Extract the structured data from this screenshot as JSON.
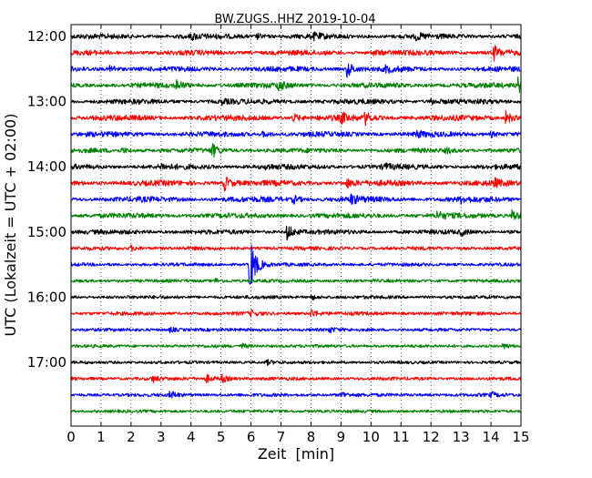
{
  "chart_data": {
    "type": "line",
    "title": "BW.ZUGS..HHZ 2019-10-04",
    "xlabel": "Zeit  [min]",
    "ylabel": "UTC (Lokalzeit = UTC + 02:00)",
    "xlim": [
      0,
      15
    ],
    "x_ticks": [
      "0",
      "1",
      "2",
      "3",
      "4",
      "5",
      "6",
      "7",
      "8",
      "9",
      "10",
      "11",
      "12",
      "13",
      "14",
      "15"
    ],
    "y_ticks": [
      "12:00",
      "13:00",
      "14:00",
      "15:00",
      "16:00",
      "17:00"
    ],
    "grid": "vertical dotted",
    "trace_colors": [
      "#000000",
      "#ff0000",
      "#0000ff",
      "#008000"
    ],
    "series": [
      {
        "start": "12:00",
        "noise": 0.3,
        "events": [
          [
            4.0,
            0.35
          ],
          [
            6.2,
            0.3
          ],
          [
            8.1,
            0.3
          ],
          [
            11.5,
            0.35
          ]
        ]
      },
      {
        "start": "12:15",
        "noise": 0.3,
        "events": [
          [
            10.1,
            0.35
          ],
          [
            14.1,
            0.8
          ]
        ]
      },
      {
        "start": "12:30",
        "noise": 0.3,
        "events": [
          [
            1.3,
            0.5
          ],
          [
            9.2,
            1.0
          ],
          [
            10.5,
            0.35
          ]
        ]
      },
      {
        "start": "12:45",
        "noise": 0.3,
        "events": [
          [
            3.5,
            0.6
          ],
          [
            6.9,
            0.6
          ],
          [
            14.9,
            0.9
          ]
        ]
      },
      {
        "start": "13:00",
        "noise": 0.3,
        "events": [
          [
            5.0,
            0.3
          ],
          [
            12.0,
            0.3
          ]
        ]
      },
      {
        "start": "13:15",
        "noise": 0.35,
        "events": [
          [
            7.4,
            0.5
          ],
          [
            9.0,
            0.6
          ],
          [
            9.8,
            0.7
          ],
          [
            14.5,
            0.8
          ]
        ]
      },
      {
        "start": "13:30",
        "noise": 0.3,
        "events": [
          [
            6.4,
            0.35
          ],
          [
            11.5,
            0.4
          ],
          [
            14.0,
            0.3
          ]
        ]
      },
      {
        "start": "13:45",
        "noise": 0.25,
        "events": [
          [
            1.7,
            0.3
          ],
          [
            4.7,
            0.8
          ],
          [
            12.5,
            0.3
          ]
        ]
      },
      {
        "start": "14:00",
        "noise": 0.3,
        "events": [
          [
            3.0,
            0.3
          ],
          [
            6.5,
            0.3
          ],
          [
            10.4,
            0.4
          ]
        ]
      },
      {
        "start": "14:15",
        "noise": 0.35,
        "events": [
          [
            5.1,
            1.0
          ],
          [
            9.2,
            0.5
          ],
          [
            14.1,
            0.4
          ]
        ]
      },
      {
        "start": "14:30",
        "noise": 0.35,
        "events": [
          [
            7.4,
            0.5
          ],
          [
            9.3,
            0.6
          ],
          [
            13.0,
            0.3
          ]
        ]
      },
      {
        "start": "14:45",
        "noise": 0.3,
        "events": [
          [
            12.2,
            0.5
          ],
          [
            14.7,
            0.8
          ]
        ]
      },
      {
        "start": "15:00",
        "noise": 0.25,
        "events": [
          [
            7.2,
            1.0
          ],
          [
            13.0,
            0.35
          ]
        ]
      },
      {
        "start": "15:15",
        "noise": 0.15,
        "events": [
          [
            2.0,
            0.3
          ]
        ]
      },
      {
        "start": "15:30",
        "noise": 0.12,
        "events": [
          [
            5.95,
            3.8
          ]
        ]
      },
      {
        "start": "15:45",
        "noise": 0.1,
        "events": [
          [
            4.8,
            0.3
          ]
        ]
      },
      {
        "start": "16:00",
        "noise": 0.12,
        "events": [
          [
            8.0,
            0.3
          ]
        ]
      },
      {
        "start": "16:15",
        "noise": 0.15,
        "events": [
          [
            6.0,
            0.3
          ],
          [
            8.0,
            0.5
          ]
        ]
      },
      {
        "start": "16:30",
        "noise": 0.1,
        "events": [
          [
            3.3,
            0.3
          ],
          [
            8.6,
            0.3
          ]
        ]
      },
      {
        "start": "16:45",
        "noise": 0.08,
        "events": [
          [
            5.7,
            0.3
          ],
          [
            14.4,
            0.3
          ]
        ]
      },
      {
        "start": "17:00",
        "noise": 0.08,
        "events": [
          [
            6.5,
            0.3
          ]
        ]
      },
      {
        "start": "17:15",
        "noise": 0.12,
        "events": [
          [
            2.7,
            0.4
          ],
          [
            4.5,
            0.5
          ],
          [
            5.0,
            0.5
          ]
        ]
      },
      {
        "start": "17:30",
        "noise": 0.12,
        "events": [
          [
            3.3,
            0.5
          ],
          [
            9.0,
            0.4
          ],
          [
            14.0,
            0.3
          ]
        ]
      },
      {
        "start": "17:45",
        "noise": 0.08,
        "events": []
      }
    ]
  }
}
